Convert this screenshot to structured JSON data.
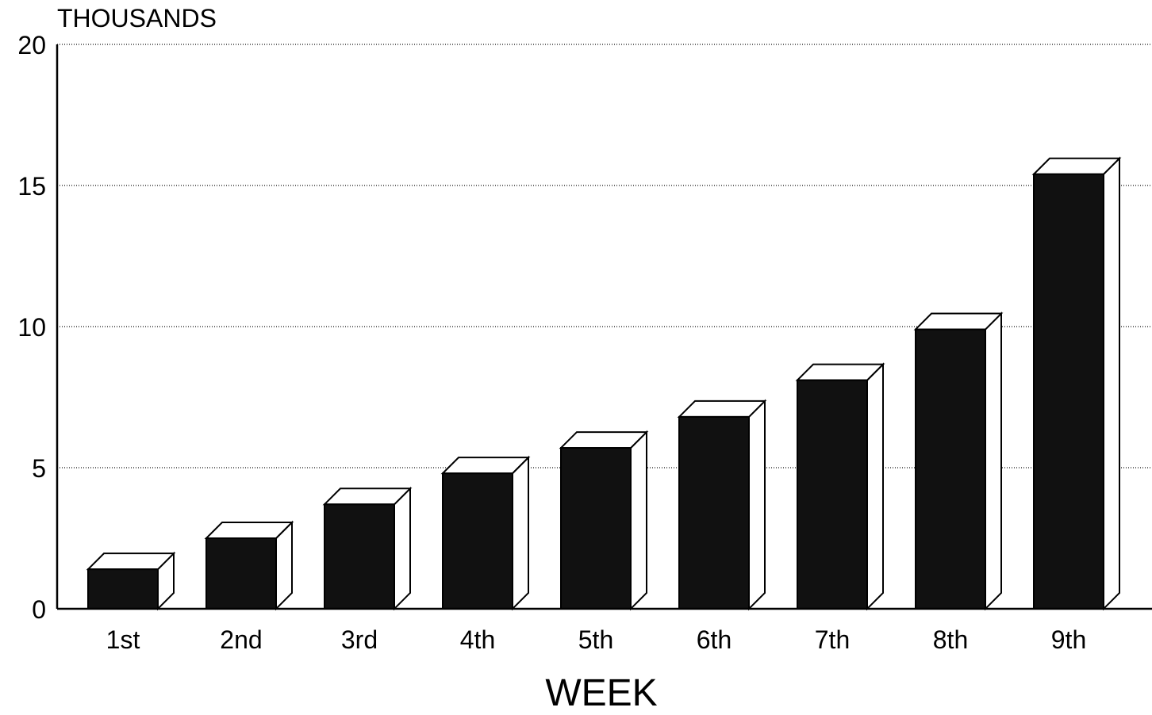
{
  "chart_data": {
    "type": "bar",
    "unit_label": "THOUSANDS",
    "xlabel": "WEEK",
    "ylabel": "",
    "categories": [
      "1st",
      "2nd",
      "3rd",
      "4th",
      "5th",
      "6th",
      "7th",
      "8th",
      "9th"
    ],
    "values": [
      1.4,
      2.5,
      3.7,
      4.8,
      5.7,
      6.8,
      8.1,
      9.9,
      15.4
    ],
    "ylim": [
      0,
      20
    ],
    "yticks": [
      "0",
      "5",
      "10",
      "15",
      "20"
    ],
    "grid": true,
    "legend": "none",
    "style": "3d",
    "colors": {
      "bar_front": "#111111",
      "bar_side": "#ffffff",
      "gridline": "#111111",
      "axis": "#000000"
    }
  }
}
